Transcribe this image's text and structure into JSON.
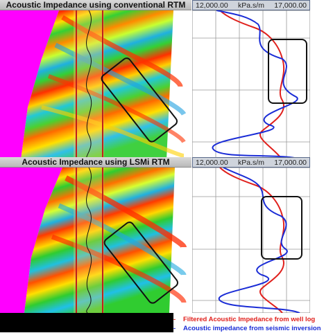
{
  "top_panel": {
    "title": "Acoustic Impedance using conventional RTM",
    "scale": {
      "min": "12,000.00",
      "unit": "kPa.s/m",
      "max": "17,000.00"
    }
  },
  "bottom_panel": {
    "title": "Acoustic Impedance using LSMi RTM",
    "scale": {
      "min": "12,000.00",
      "unit": "kPa.s/m",
      "max": "17,000.00"
    }
  },
  "legend": [
    {
      "marker": "-",
      "label": "Filtered Acoustic Impedance from well log",
      "color": "#e0201c"
    },
    {
      "marker": "-",
      "label": "Acoustic impedance from seismic inversion",
      "color": "#1a2cd6"
    }
  ],
  "colors": {
    "well_log": "#e0201c",
    "seismic_inversion": "#1a2cd6",
    "background_magenta": "#ff00ff"
  }
}
